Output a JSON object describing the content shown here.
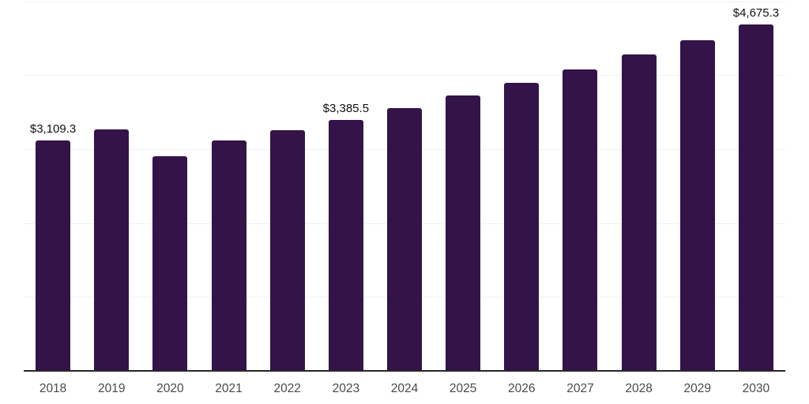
{
  "chart_data": {
    "type": "bar",
    "title": "",
    "xlabel": "",
    "ylabel": "",
    "categories": [
      "2018",
      "2019",
      "2020",
      "2021",
      "2022",
      "2023",
      "2024",
      "2025",
      "2026",
      "2027",
      "2028",
      "2029",
      "2030"
    ],
    "values": [
      3109.3,
      3255.0,
      2895.0,
      3110.0,
      3245.0,
      3385.5,
      3545.0,
      3713.0,
      3888.0,
      4071.0,
      4264.0,
      4465.0,
      4675.3
    ],
    "value_labels": {
      "2018": "$3,109.3",
      "2023": "$3,385.5",
      "2030": "$4,675.3"
    },
    "ylim": [
      0,
      5000
    ],
    "gridline_interval": 1000,
    "grid": "horizontal-only",
    "y_tick_labels_visible": false,
    "legend": "none",
    "colors": {
      "bar": "#341348",
      "axis_line": "#262626",
      "gridline": "#f0f0f2",
      "tick_label": "#4a4a4a",
      "value_label": "#111111",
      "background": "#ffffff"
    }
  }
}
